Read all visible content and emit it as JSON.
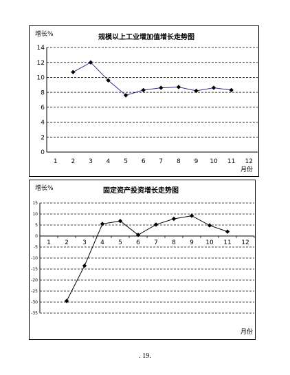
{
  "page_number": ". 19.",
  "chart_data": [
    {
      "type": "line",
      "title": "规模以上工业增加值增长走势图",
      "ylabel": "增长%",
      "xlabel": "月份",
      "categories": [
        "1",
        "2",
        "3",
        "4",
        "5",
        "6",
        "7",
        "8",
        "9",
        "10",
        "11",
        "12"
      ],
      "ylim": [
        0,
        14
      ],
      "yticks": [
        "0",
        "2",
        "4",
        "6",
        "8",
        "10",
        "12",
        "14"
      ],
      "grid": "horizontal-dashed",
      "series": [
        {
          "color": "#2b2b8c",
          "marker": "diamond",
          "values": [
            null,
            10.7,
            12.0,
            9.6,
            7.6,
            8.3,
            8.6,
            8.7,
            8.2,
            8.6,
            8.3,
            null
          ]
        }
      ]
    },
    {
      "type": "line",
      "title": "固定资产投资增长走势图",
      "ylabel": "增长%",
      "xlabel": "月份",
      "categories": [
        "1",
        "2",
        "3",
        "4",
        "5",
        "6",
        "7",
        "8",
        "9",
        "10",
        "11",
        "12"
      ],
      "ylim": [
        -35,
        15
      ],
      "yticks": [
        "15",
        "10",
        "5",
        "0",
        "-5",
        "-10",
        "-15",
        "-20",
        "-25",
        "-30",
        "-35"
      ],
      "grid": "horizontal-dashed",
      "series": [
        {
          "color": "#000000",
          "marker": "diamond",
          "values": [
            null,
            -29.5,
            -13.5,
            5.5,
            6.8,
            0.5,
            5.2,
            7.8,
            9.2,
            4.8,
            2.0,
            null
          ]
        }
      ]
    }
  ]
}
